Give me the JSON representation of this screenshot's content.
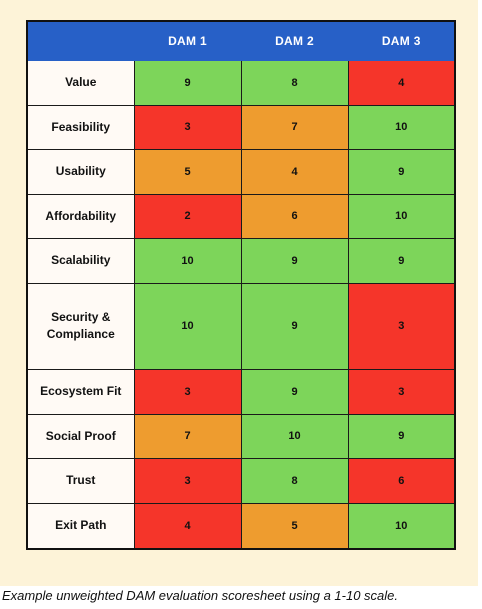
{
  "table": {
    "headers": [
      "",
      "DAM 1",
      "DAM 2",
      "DAM 3"
    ],
    "rows": [
      {
        "label": "Value",
        "scores": [
          "9",
          "8",
          "4"
        ]
      },
      {
        "label": "Feasibility",
        "scores": [
          "3",
          "7",
          "10"
        ]
      },
      {
        "label": "Usability",
        "scores": [
          "5",
          "4",
          "9"
        ]
      },
      {
        "label": "Affordability",
        "scores": [
          "2",
          "6",
          "10"
        ]
      },
      {
        "label": "Scalability",
        "scores": [
          "10",
          "9",
          "9"
        ]
      },
      {
        "label": "Security & Compliance",
        "scores": [
          "10",
          "9",
          "3"
        ]
      },
      {
        "label": "Ecosystem Fit",
        "scores": [
          "3",
          "9",
          "3"
        ]
      },
      {
        "label": "Social Proof",
        "scores": [
          "7",
          "10",
          "9"
        ]
      },
      {
        "label": "Trust",
        "scores": [
          "3",
          "8",
          "6"
        ]
      },
      {
        "label": "Exit Path",
        "scores": [
          "4",
          "5",
          "10"
        ]
      }
    ],
    "cell_colors": [
      [
        "green",
        "green",
        "red"
      ],
      [
        "red",
        "orange",
        "green"
      ],
      [
        "orange",
        "orange",
        "green"
      ],
      [
        "red",
        "orange",
        "green"
      ],
      [
        "green",
        "green",
        "green"
      ],
      [
        "green",
        "green",
        "red"
      ],
      [
        "red",
        "green",
        "red"
      ],
      [
        "orange",
        "green",
        "green"
      ],
      [
        "red",
        "green",
        "red"
      ],
      [
        "red",
        "orange",
        "green"
      ]
    ],
    "palette": {
      "header": "#2760c7",
      "green": "#7dd55a",
      "orange": "#ee9c2f",
      "red": "#f5352a",
      "label_bg": "#fffaf5",
      "frame": "#fdf3d8"
    }
  },
  "caption": "Example unweighted DAM evaluation scoresheet using a 1-10 scale."
}
